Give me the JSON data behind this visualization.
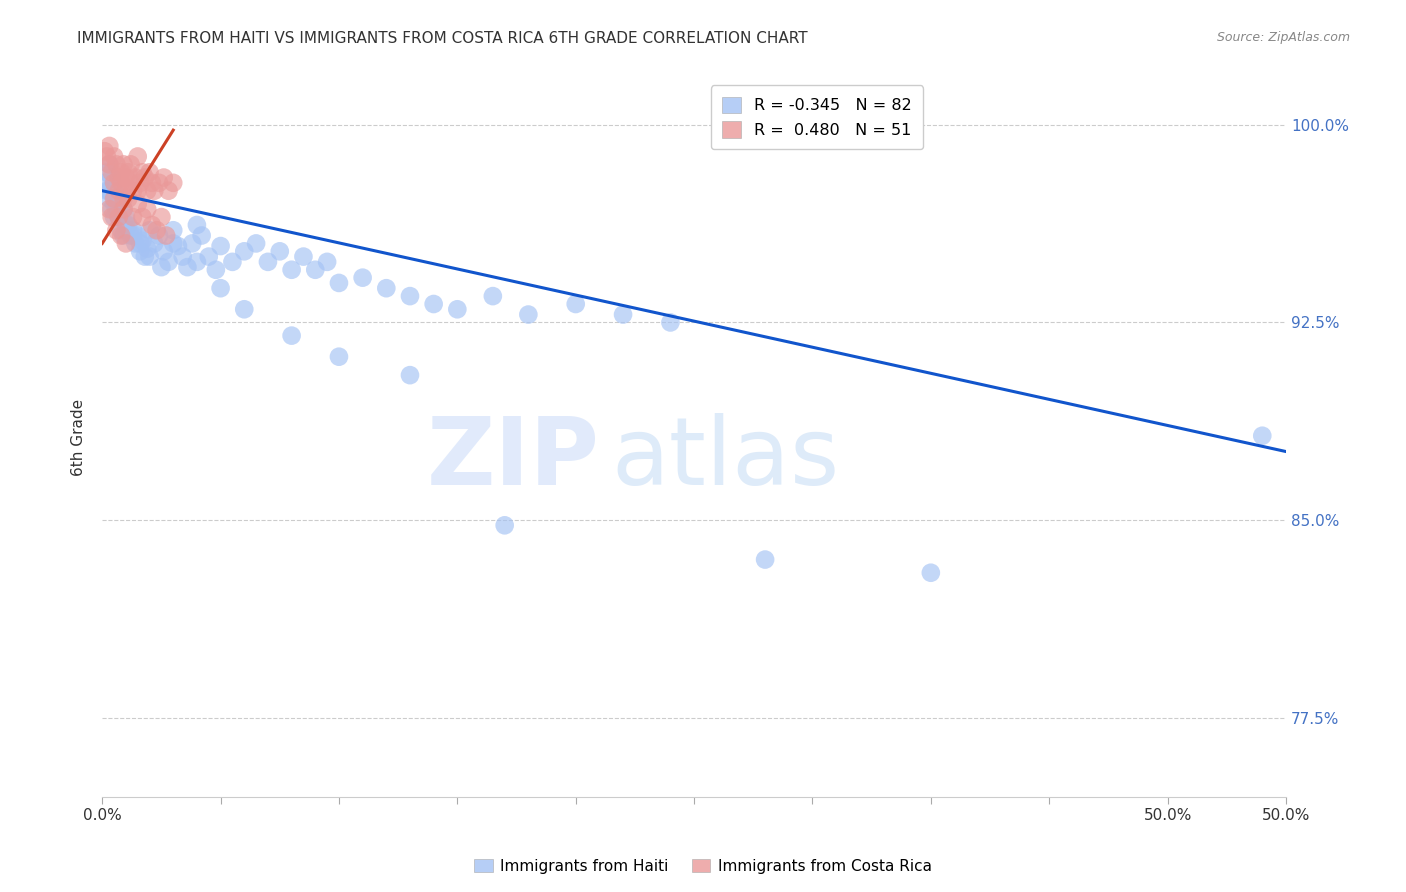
{
  "title": "IMMIGRANTS FROM HAITI VS IMMIGRANTS FROM COSTA RICA 6TH GRADE CORRELATION CHART",
  "source": "Source: ZipAtlas.com",
  "ylabel": "6th Grade",
  "yticks": [
    0.775,
    0.85,
    0.925,
    1.0
  ],
  "ytick_labels": [
    "77.5%",
    "85.0%",
    "92.5%",
    "100.0%"
  ],
  "xlim": [
    0.0,
    0.5
  ],
  "ylim": [
    0.745,
    1.018
  ],
  "watermark_zip": "ZIP",
  "watermark_atlas": "atlas",
  "legend_haiti_R": "-0.345",
  "legend_haiti_N": "82",
  "legend_cr_R": "0.480",
  "legend_cr_N": "51",
  "haiti_color": "#a4c2f4",
  "cr_color": "#ea9999",
  "haiti_line_color": "#1155cc",
  "cr_line_color": "#cc4125",
  "haiti_scatter_x": [
    0.001,
    0.002,
    0.002,
    0.003,
    0.003,
    0.004,
    0.004,
    0.005,
    0.005,
    0.006,
    0.006,
    0.007,
    0.007,
    0.008,
    0.008,
    0.009,
    0.009,
    0.01,
    0.01,
    0.011,
    0.012,
    0.013,
    0.014,
    0.015,
    0.016,
    0.017,
    0.018,
    0.019,
    0.02,
    0.022,
    0.024,
    0.026,
    0.028,
    0.03,
    0.032,
    0.034,
    0.036,
    0.038,
    0.04,
    0.042,
    0.045,
    0.048,
    0.05,
    0.055,
    0.06,
    0.065,
    0.07,
    0.075,
    0.08,
    0.085,
    0.09,
    0.095,
    0.1,
    0.11,
    0.12,
    0.13,
    0.14,
    0.15,
    0.165,
    0.18,
    0.2,
    0.22,
    0.24,
    0.003,
    0.005,
    0.007,
    0.01,
    0.013,
    0.016,
    0.02,
    0.025,
    0.03,
    0.04,
    0.05,
    0.06,
    0.08,
    0.1,
    0.13,
    0.17,
    0.28,
    0.35,
    0.49
  ],
  "haiti_scatter_y": [
    0.978,
    0.982,
    0.975,
    0.985,
    0.972,
    0.98,
    0.968,
    0.975,
    0.965,
    0.972,
    0.968,
    0.97,
    0.965,
    0.972,
    0.96,
    0.968,
    0.958,
    0.965,
    0.96,
    0.962,
    0.958,
    0.96,
    0.955,
    0.958,
    0.952,
    0.956,
    0.95,
    0.953,
    0.96,
    0.955,
    0.958,
    0.952,
    0.948,
    0.96,
    0.954,
    0.95,
    0.946,
    0.955,
    0.962,
    0.958,
    0.95,
    0.945,
    0.954,
    0.948,
    0.952,
    0.955,
    0.948,
    0.952,
    0.945,
    0.95,
    0.945,
    0.948,
    0.94,
    0.942,
    0.938,
    0.935,
    0.932,
    0.93,
    0.935,
    0.928,
    0.932,
    0.928,
    0.925,
    0.975,
    0.97,
    0.965,
    0.962,
    0.958,
    0.955,
    0.95,
    0.946,
    0.955,
    0.948,
    0.938,
    0.93,
    0.92,
    0.912,
    0.905,
    0.848,
    0.835,
    0.83,
    0.882
  ],
  "cr_scatter_x": [
    0.001,
    0.002,
    0.003,
    0.003,
    0.004,
    0.005,
    0.005,
    0.006,
    0.007,
    0.007,
    0.008,
    0.008,
    0.009,
    0.009,
    0.01,
    0.01,
    0.011,
    0.012,
    0.012,
    0.013,
    0.014,
    0.015,
    0.015,
    0.016,
    0.017,
    0.018,
    0.019,
    0.02,
    0.021,
    0.022,
    0.024,
    0.026,
    0.028,
    0.03,
    0.003,
    0.005,
    0.007,
    0.009,
    0.011,
    0.013,
    0.015,
    0.017,
    0.019,
    0.021,
    0.023,
    0.025,
    0.027,
    0.004,
    0.006,
    0.008,
    0.01
  ],
  "cr_scatter_y": [
    0.99,
    0.988,
    0.985,
    0.992,
    0.982,
    0.988,
    0.978,
    0.985,
    0.98,
    0.975,
    0.982,
    0.978,
    0.985,
    0.972,
    0.98,
    0.975,
    0.982,
    0.978,
    0.985,
    0.975,
    0.98,
    0.975,
    0.988,
    0.978,
    0.982,
    0.98,
    0.975,
    0.982,
    0.978,
    0.975,
    0.978,
    0.98,
    0.975,
    0.978,
    0.968,
    0.972,
    0.965,
    0.968,
    0.972,
    0.965,
    0.97,
    0.965,
    0.968,
    0.962,
    0.96,
    0.965,
    0.958,
    0.965,
    0.96,
    0.958,
    0.955
  ],
  "haiti_trendline_x": [
    0.0,
    0.5
  ],
  "haiti_trendline_y": [
    0.975,
    0.876
  ],
  "cr_trendline_x": [
    0.0,
    0.03
  ],
  "cr_trendline_y": [
    0.955,
    0.998
  ],
  "grid_color": "#cccccc",
  "background_color": "#ffffff",
  "title_fontsize": 11,
  "axis_label_color_right": "#4472c4",
  "xtick_positions": [
    0.0,
    0.05,
    0.1,
    0.15,
    0.2,
    0.25,
    0.3,
    0.35,
    0.4,
    0.45,
    0.5
  ],
  "xtick_labels_show": {
    "0.0": "0.0%",
    "0.5": "50.0%"
  }
}
